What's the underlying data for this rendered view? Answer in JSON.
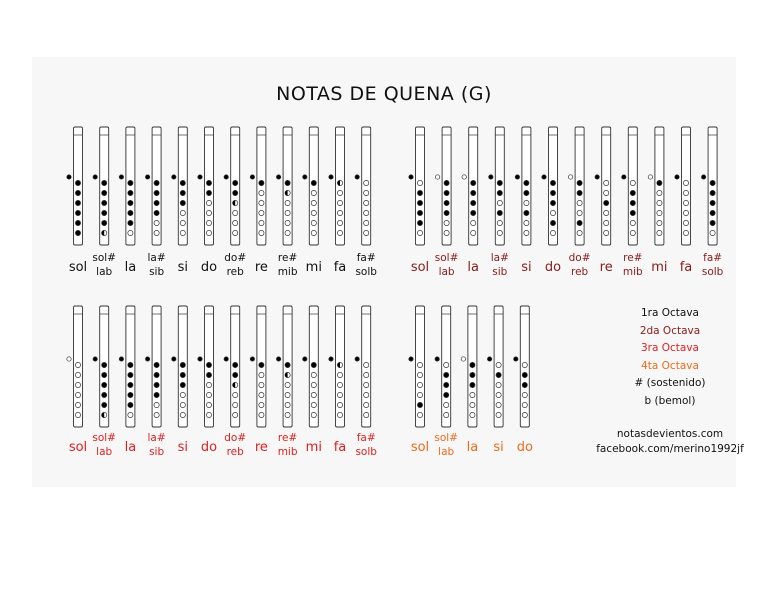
{
  "title": "NOTAS DE QUENA (G)",
  "colors": {
    "octave1": "#111111",
    "octave2": "#8b1a1a",
    "octave3": "#e02020",
    "octave4": "#ee6a1a",
    "hole_open": "#ffffff",
    "hole_closed": "#000000",
    "outline": "#333333"
  },
  "legend": {
    "octave1": "1ra Octava",
    "octave2": "2da Octava",
    "octave3": "3ra Octava",
    "octave4": "4ta Octava",
    "sharp": "# (sostenido)",
    "flat": "b (bemol)"
  },
  "credits": {
    "website": "notasdevientos.com",
    "facebook": "facebook.com/merino1992jf"
  },
  "groups": [
    {
      "octave": 1,
      "notes": [
        {
          "label": [
            "sol"
          ],
          "thumb": "closed",
          "holes": [
            "closed",
            "closed",
            "closed",
            "closed",
            "closed",
            "closed"
          ]
        },
        {
          "label": [
            "sol#",
            "lab"
          ],
          "thumb": "closed",
          "holes": [
            "closed",
            "closed",
            "closed",
            "closed",
            "closed",
            "half"
          ]
        },
        {
          "label": [
            "la"
          ],
          "thumb": "closed",
          "holes": [
            "closed",
            "closed",
            "closed",
            "closed",
            "closed",
            "open"
          ]
        },
        {
          "label": [
            "la#",
            "sib"
          ],
          "thumb": "closed",
          "holes": [
            "closed",
            "closed",
            "closed",
            "closed",
            "open",
            "open"
          ]
        },
        {
          "label": [
            "si"
          ],
          "thumb": "closed",
          "holes": [
            "closed",
            "closed",
            "closed",
            "open",
            "open",
            "open"
          ]
        },
        {
          "label": [
            "do"
          ],
          "thumb": "closed",
          "holes": [
            "closed",
            "closed",
            "open",
            "open",
            "open",
            "open"
          ]
        },
        {
          "label": [
            "do#",
            "reb"
          ],
          "thumb": "closed",
          "holes": [
            "closed",
            "closed",
            "half",
            "open",
            "open",
            "open"
          ]
        },
        {
          "label": [
            "re"
          ],
          "thumb": "closed",
          "holes": [
            "closed",
            "open",
            "open",
            "open",
            "open",
            "open"
          ]
        },
        {
          "label": [
            "re#",
            "mib"
          ],
          "thumb": "closed",
          "holes": [
            "closed",
            "half",
            "open",
            "open",
            "open",
            "open"
          ]
        },
        {
          "label": [
            "mi"
          ],
          "thumb": "closed",
          "holes": [
            "closed",
            "open",
            "open",
            "open",
            "open",
            "open"
          ]
        },
        {
          "label": [
            "fa"
          ],
          "thumb": "closed",
          "holes": [
            "half",
            "open",
            "open",
            "open",
            "open",
            "open"
          ]
        },
        {
          "label": [
            "fa#",
            "solb"
          ],
          "thumb": "closed",
          "holes": [
            "open",
            "open",
            "open",
            "open",
            "open",
            "open"
          ]
        }
      ]
    },
    {
      "octave": 2,
      "notes": [
        {
          "label": [
            "sol"
          ],
          "thumb": "closed",
          "holes": [
            "open",
            "closed",
            "closed",
            "closed",
            "closed",
            "open"
          ]
        },
        {
          "label": [
            "sol#",
            "lab"
          ],
          "thumb": "open",
          "holes": [
            "closed",
            "closed",
            "closed",
            "closed",
            "open",
            "open"
          ]
        },
        {
          "label": [
            "la"
          ],
          "thumb": "open",
          "holes": [
            "closed",
            "closed",
            "closed",
            "closed",
            "open",
            "open"
          ]
        },
        {
          "label": [
            "la#",
            "sib"
          ],
          "thumb": "closed",
          "holes": [
            "closed",
            "closed",
            "open",
            "closed",
            "open",
            "open"
          ]
        },
        {
          "label": [
            "si"
          ],
          "thumb": "closed",
          "holes": [
            "closed",
            "closed",
            "open",
            "closed",
            "open",
            "open"
          ]
        },
        {
          "label": [
            "do"
          ],
          "thumb": "closed",
          "holes": [
            "closed",
            "closed",
            "closed",
            "open",
            "closed",
            "open"
          ]
        },
        {
          "label": [
            "do#",
            "reb"
          ],
          "thumb": "open",
          "holes": [
            "closed",
            "closed",
            "open",
            "open",
            "closed",
            "open"
          ]
        },
        {
          "label": [
            "re"
          ],
          "thumb": "closed",
          "holes": [
            "open",
            "open",
            "closed",
            "open",
            "open",
            "open"
          ]
        },
        {
          "label": [
            "re#",
            "mib"
          ],
          "thumb": "closed",
          "holes": [
            "open",
            "closed",
            "closed",
            "closed",
            "open",
            "open"
          ]
        },
        {
          "label": [
            "mi"
          ],
          "thumb": "open",
          "holes": [
            "closed",
            "open",
            "open",
            "open",
            "open",
            "open"
          ]
        },
        {
          "label": [
            "fa"
          ],
          "thumb": "closed",
          "holes": [
            "open",
            "open",
            "open",
            "open",
            "open",
            "open"
          ]
        },
        {
          "label": [
            "fa#",
            "solb"
          ],
          "thumb": "closed",
          "holes": [
            "closed",
            "closed",
            "closed",
            "closed",
            "closed",
            "open"
          ]
        }
      ]
    },
    {
      "octave": 3,
      "notes": [
        {
          "label": [
            "sol"
          ],
          "thumb": "open",
          "holes": [
            "open",
            "open",
            "open",
            "open",
            "open",
            "open"
          ]
        },
        {
          "label": [
            "sol#",
            "lab"
          ],
          "thumb": "closed",
          "holes": [
            "closed",
            "closed",
            "closed",
            "closed",
            "closed",
            "half"
          ]
        },
        {
          "label": [
            "la"
          ],
          "thumb": "closed",
          "holes": [
            "closed",
            "closed",
            "closed",
            "closed",
            "closed",
            "open"
          ]
        },
        {
          "label": [
            "la#",
            "sib"
          ],
          "thumb": "closed",
          "holes": [
            "closed",
            "closed",
            "closed",
            "closed",
            "open",
            "open"
          ]
        },
        {
          "label": [
            "si"
          ],
          "thumb": "closed",
          "holes": [
            "closed",
            "closed",
            "closed",
            "open",
            "open",
            "open"
          ]
        },
        {
          "label": [
            "do"
          ],
          "thumb": "closed",
          "holes": [
            "closed",
            "closed",
            "open",
            "open",
            "open",
            "open"
          ]
        },
        {
          "label": [
            "do#",
            "reb"
          ],
          "thumb": "closed",
          "holes": [
            "closed",
            "closed",
            "half",
            "open",
            "open",
            "open"
          ]
        },
        {
          "label": [
            "re"
          ],
          "thumb": "closed",
          "holes": [
            "closed",
            "open",
            "open",
            "open",
            "open",
            "open"
          ]
        },
        {
          "label": [
            "re#",
            "mib"
          ],
          "thumb": "closed",
          "holes": [
            "closed",
            "half",
            "open",
            "open",
            "open",
            "open"
          ]
        },
        {
          "label": [
            "mi"
          ],
          "thumb": "closed",
          "holes": [
            "closed",
            "open",
            "open",
            "open",
            "open",
            "open"
          ]
        },
        {
          "label": [
            "fa"
          ],
          "thumb": "closed",
          "holes": [
            "half",
            "open",
            "open",
            "open",
            "open",
            "open"
          ]
        },
        {
          "label": [
            "fa#",
            "solb"
          ],
          "thumb": "closed",
          "holes": [
            "open",
            "open",
            "open",
            "open",
            "open",
            "open"
          ]
        }
      ]
    },
    {
      "octave": 4,
      "notes": [
        {
          "label": [
            "sol"
          ],
          "thumb": "closed",
          "holes": [
            "open",
            "open",
            "open",
            "open",
            "closed",
            "open"
          ]
        },
        {
          "label": [
            "sol#",
            "lab"
          ],
          "thumb": "closed",
          "holes": [
            "open",
            "closed",
            "closed",
            "closed",
            "open",
            "open"
          ]
        },
        {
          "label": [
            "la"
          ],
          "thumb": "open",
          "holes": [
            "closed",
            "closed",
            "closed",
            "open",
            "open",
            "open"
          ]
        },
        {
          "label": [
            "si"
          ],
          "thumb": "closed",
          "holes": [
            "open",
            "closed",
            "open",
            "open",
            "open",
            "open"
          ]
        },
        {
          "label": [
            "do"
          ],
          "thumb": "closed",
          "holes": [
            "open",
            "closed",
            "closed",
            "open",
            "open",
            "open"
          ]
        }
      ]
    }
  ]
}
